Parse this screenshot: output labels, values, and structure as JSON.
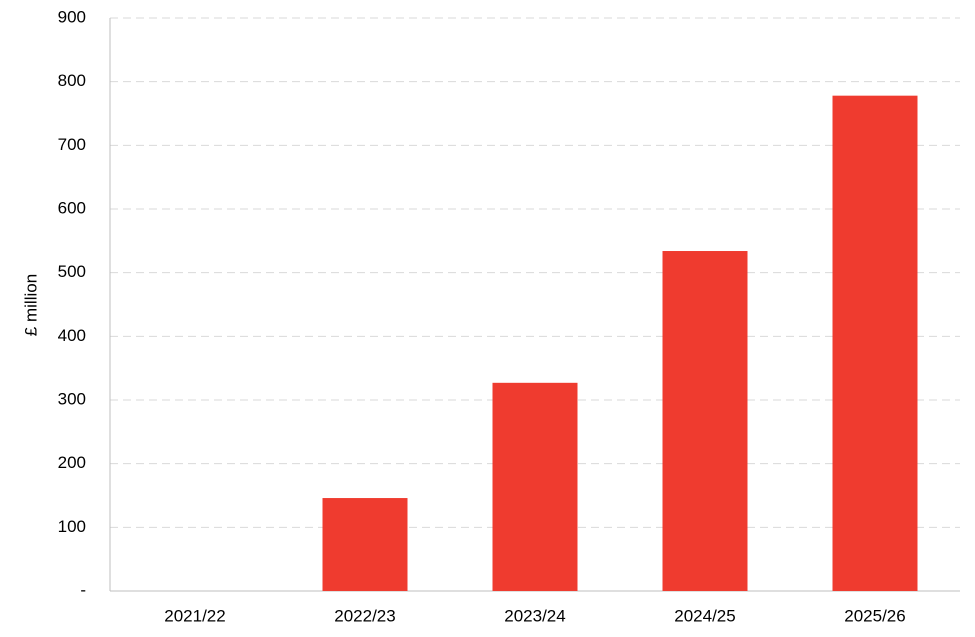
{
  "chart_data": {
    "type": "bar",
    "y_label": "£ million",
    "categories": [
      "2021/22",
      "2022/23",
      "2023/24",
      "2024/25",
      "2025/26"
    ],
    "values": [
      0,
      146,
      327,
      534,
      778
    ],
    "color": "#ef3b2f",
    "ylim": [
      0,
      900
    ],
    "yticks": [
      {
        "value": 0,
        "label": "-"
      },
      100,
      200,
      300,
      400,
      500,
      600,
      700,
      800,
      900
    ],
    "grid": true
  }
}
